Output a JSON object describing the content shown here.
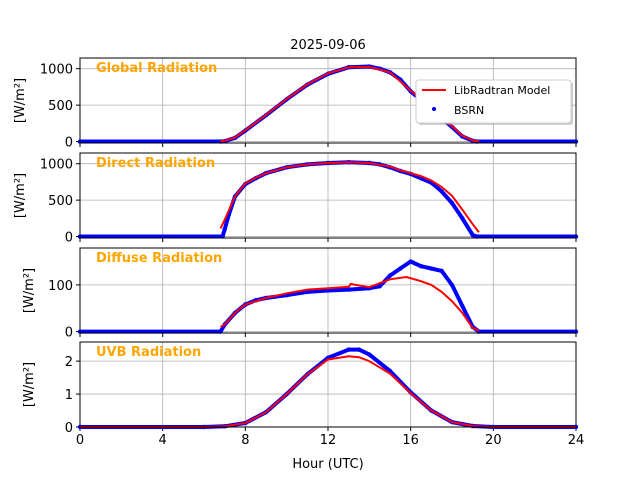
{
  "chart_data": {
    "type": "line",
    "title": "2025-09-06",
    "xlabel": "Hour (UTC)",
    "xlim": [
      0,
      24
    ],
    "xticks": [
      0,
      4,
      8,
      12,
      16,
      20,
      24
    ],
    "grid": true,
    "legend": {
      "placement": "top-right of first panel",
      "entries": [
        "LibRadtran Model",
        "BSRN"
      ]
    },
    "colors": {
      "model": "#ff0000",
      "bsrn": "#0000ff",
      "panel_title": "#ffa500"
    },
    "panels": [
      {
        "title": "Global Radiation",
        "ylabel": "[W/m²]",
        "ylim": [
          -20,
          1147
        ],
        "yticks": [
          0,
          500,
          1000
        ],
        "series": [
          {
            "name": "BSRN",
            "points": [
              [
                0,
                0
              ],
              [
                6.8,
                0
              ],
              [
                7,
                5
              ],
              [
                7.5,
                50
              ],
              [
                8,
                150
              ],
              [
                9,
                360
              ],
              [
                10,
                580
              ],
              [
                11,
                780
              ],
              [
                12,
                930
              ],
              [
                13,
                1020
              ],
              [
                14,
                1030
              ],
              [
                14.5,
                1000
              ],
              [
                15,
                950
              ],
              [
                15.5,
                850
              ],
              [
                16,
                690
              ],
              [
                16.5,
                570
              ],
              [
                17,
                450
              ],
              [
                17.5,
                320
              ],
              [
                18,
                200
              ],
              [
                18.5,
                70
              ],
              [
                19,
                10
              ],
              [
                19.2,
                0
              ],
              [
                24,
                0
              ]
            ]
          },
          {
            "name": "LibRadtran Model",
            "points": [
              [
                6.8,
                5
              ],
              [
                7,
                10
              ],
              [
                7.5,
                55
              ],
              [
                8,
                155
              ],
              [
                9,
                365
              ],
              [
                10,
                585
              ],
              [
                11,
                785
              ],
              [
                12,
                935
              ],
              [
                13,
                1020
              ],
              [
                14,
                1025
              ],
              [
                15,
                950
              ],
              [
                16,
                700
              ],
              [
                17,
                460
              ],
              [
                18,
                210
              ],
              [
                18.5,
                80
              ],
              [
                19,
                15
              ],
              [
                19.3,
                2
              ]
            ]
          }
        ]
      },
      {
        "title": "Direct Radiation",
        "ylabel": "[W/m²]",
        "ylim": [
          -20,
          1147
        ],
        "yticks": [
          0,
          500,
          1000
        ],
        "series": [
          {
            "name": "BSRN",
            "points": [
              [
                0,
                0
              ],
              [
                6.9,
                0
              ],
              [
                7,
                100
              ],
              [
                7.2,
                300
              ],
              [
                7.5,
                550
              ],
              [
                8,
                720
              ],
              [
                8.5,
                800
              ],
              [
                9,
                870
              ],
              [
                10,
                950
              ],
              [
                11,
                990
              ],
              [
                12,
                1010
              ],
              [
                13,
                1020
              ],
              [
                14,
                1010
              ],
              [
                14.5,
                990
              ],
              [
                15,
                950
              ],
              [
                15.5,
                900
              ],
              [
                16,
                860
              ],
              [
                16.5,
                800
              ],
              [
                17,
                740
              ],
              [
                17.5,
                620
              ],
              [
                18,
                460
              ],
              [
                18.5,
                250
              ],
              [
                19,
                20
              ],
              [
                19.2,
                0
              ],
              [
                24,
                0
              ]
            ]
          },
          {
            "name": "LibRadtran Model",
            "points": [
              [
                6.8,
                110
              ],
              [
                7,
                230
              ],
              [
                7.5,
                550
              ],
              [
                8,
                730
              ],
              [
                8.5,
                805
              ],
              [
                9,
                870
              ],
              [
                10,
                950
              ],
              [
                11,
                990
              ],
              [
                12,
                1010
              ],
              [
                13,
                1020
              ],
              [
                14,
                1010
              ],
              [
                15,
                960
              ],
              [
                15.5,
                910
              ],
              [
                16,
                870
              ],
              [
                16.5,
                830
              ],
              [
                17,
                770
              ],
              [
                17.5,
                680
              ],
              [
                18,
                560
              ],
              [
                18.5,
                370
              ],
              [
                19,
                170
              ],
              [
                19.3,
                60
              ]
            ]
          }
        ]
      },
      {
        "title": "Diffuse Radiation",
        "ylabel": "[W/m²]",
        "ylim": [
          -3,
          179
        ],
        "yticks": [
          0,
          100
        ],
        "series": [
          {
            "name": "BSRN",
            "points": [
              [
                0,
                0
              ],
              [
                6.8,
                0
              ],
              [
                7,
                15
              ],
              [
                7.5,
                40
              ],
              [
                8,
                58
              ],
              [
                8.5,
                67
              ],
              [
                9,
                72
              ],
              [
                10,
                78
              ],
              [
                11,
                85
              ],
              [
                12,
                88
              ],
              [
                13,
                90
              ],
              [
                14,
                93
              ],
              [
                14.5,
                97
              ],
              [
                15,
                120
              ],
              [
                15.5,
                135
              ],
              [
                16,
                150
              ],
              [
                16.5,
                140
              ],
              [
                17,
                135
              ],
              [
                17.5,
                130
              ],
              [
                18,
                100
              ],
              [
                18.5,
                55
              ],
              [
                19,
                10
              ],
              [
                19.3,
                0
              ],
              [
                24,
                0
              ]
            ]
          },
          {
            "name": "LibRadtran Model",
            "points": [
              [
                6.8,
                10
              ],
              [
                7,
                15
              ],
              [
                7.5,
                40
              ],
              [
                8,
                58
              ],
              [
                9,
                72
              ],
              [
                10,
                82
              ],
              [
                11,
                90
              ],
              [
                12,
                93
              ],
              [
                13,
                96
              ],
              [
                13.1,
                102
              ],
              [
                14,
                95
              ],
              [
                15,
                112
              ],
              [
                15.8,
                117
              ],
              [
                16.5,
                108
              ],
              [
                17,
                100
              ],
              [
                17.5,
                85
              ],
              [
                18,
                65
              ],
              [
                18.5,
                40
              ],
              [
                19,
                8
              ],
              [
                19.3,
                2
              ]
            ]
          }
        ]
      },
      {
        "title": "UVB Radiation",
        "ylabel": "[W/m²]",
        "ylim": [
          0,
          2.58
        ],
        "yticks": [
          0,
          1,
          2
        ],
        "series": [
          {
            "name": "BSRN",
            "points": [
              [
                0,
                0
              ],
              [
                6,
                0
              ],
              [
                7,
                0.02
              ],
              [
                8,
                0.12
              ],
              [
                9,
                0.45
              ],
              [
                10,
                1.0
              ],
              [
                11,
                1.6
              ],
              [
                12,
                2.1
              ],
              [
                13,
                2.35
              ],
              [
                13.5,
                2.35
              ],
              [
                14,
                2.2
              ],
              [
                15,
                1.7
              ],
              [
                16,
                1.05
              ],
              [
                17,
                0.5
              ],
              [
                18,
                0.15
              ],
              [
                19,
                0.03
              ],
              [
                20,
                0
              ],
              [
                24,
                0
              ]
            ]
          },
          {
            "name": "LibRadtran Model",
            "points": [
              [
                0,
                0
              ],
              [
                6,
                0
              ],
              [
                7,
                0.02
              ],
              [
                8,
                0.12
              ],
              [
                9,
                0.45
              ],
              [
                10,
                1.0
              ],
              [
                11,
                1.6
              ],
              [
                12,
                2.05
              ],
              [
                13,
                2.15
              ],
              [
                13.5,
                2.12
              ],
              [
                14,
                2.0
              ],
              [
                15,
                1.62
              ],
              [
                16,
                1.03
              ],
              [
                17,
                0.5
              ],
              [
                18,
                0.15
              ],
              [
                19,
                0.03
              ],
              [
                20,
                0
              ],
              [
                24,
                0
              ]
            ]
          }
        ]
      }
    ]
  }
}
